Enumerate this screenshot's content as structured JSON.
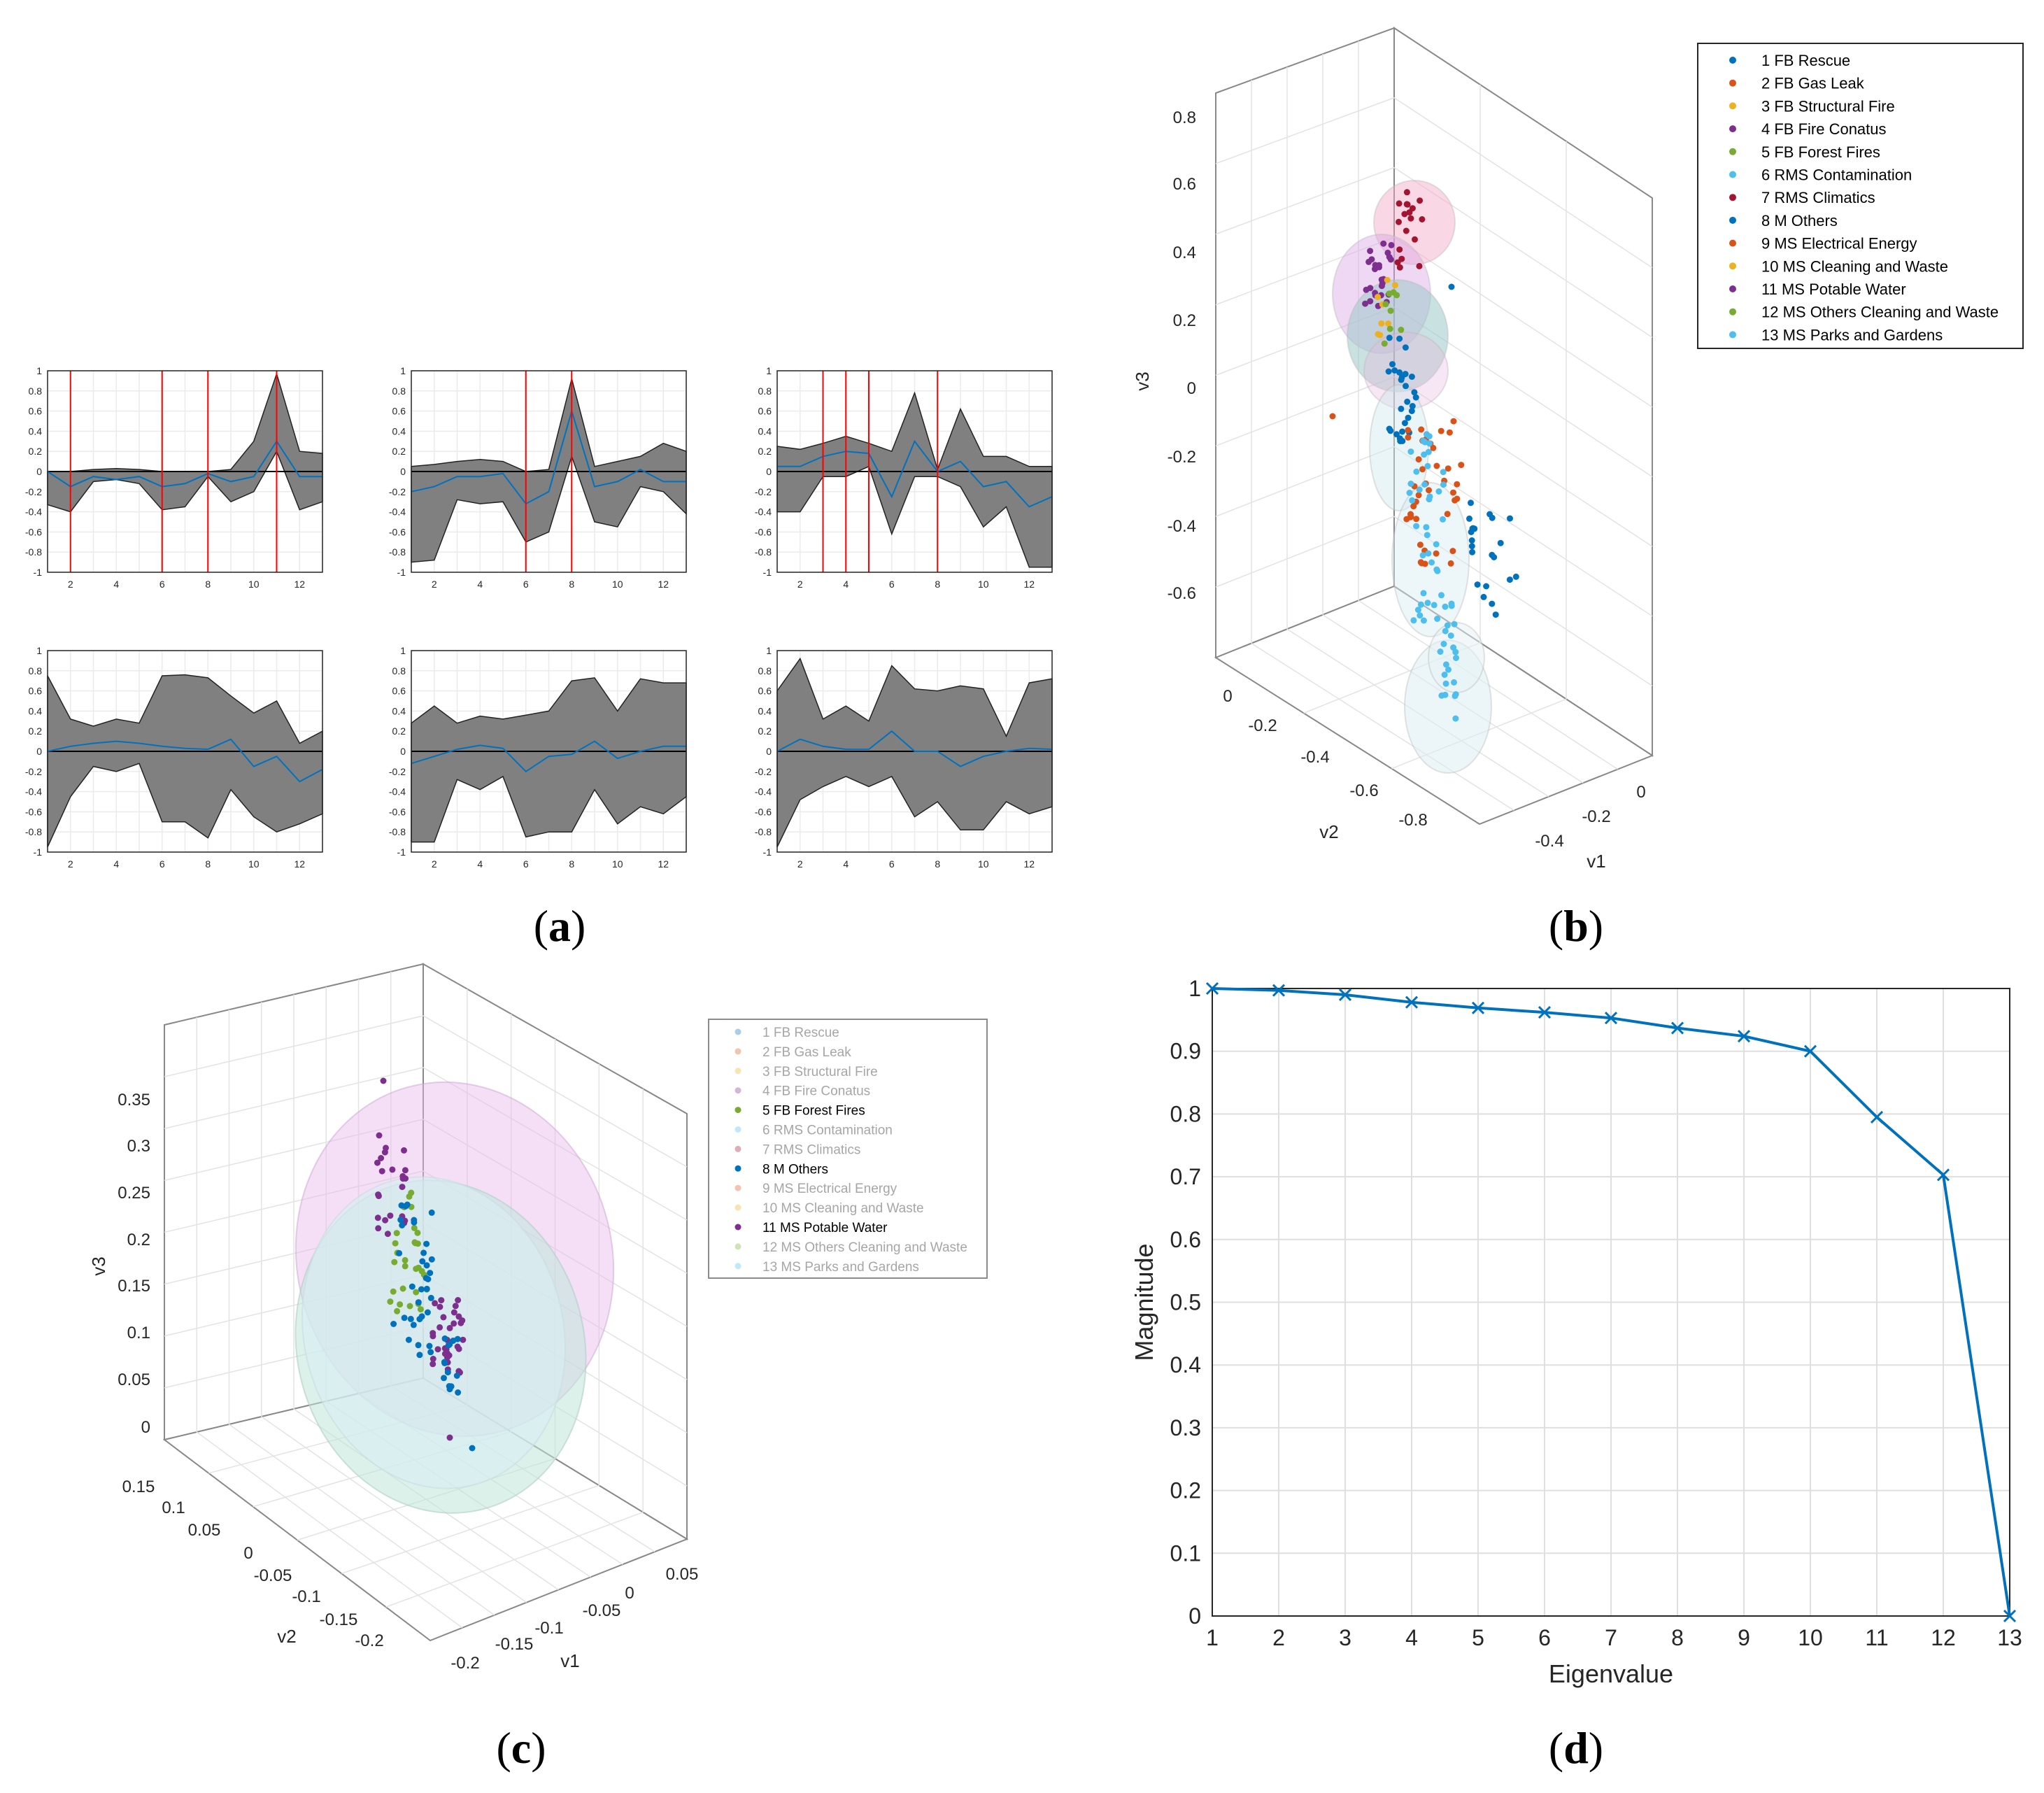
{
  "captions": {
    "a_open": "(",
    "a": "a",
    "a_close": ")",
    "b_open": "(",
    "b": "b",
    "b_close": ")",
    "c_open": "(",
    "c": "c",
    "c_close": ")",
    "d_open": "(",
    "d": "d",
    "d_close": ")"
  },
  "colors": {
    "line_blue": "#0072BD",
    "band_gray": "#808080",
    "red_marker": "#FF0000",
    "grid": "#E6E6E6"
  },
  "chart_data": [
    {
      "id": "a",
      "type": "area",
      "description_title": "",
      "xlim": [
        1,
        13
      ],
      "ylim": [
        -1,
        1
      ],
      "xticks": [
        2,
        4,
        6,
        8,
        10,
        12
      ],
      "yticks": [
        1,
        0.8,
        0.6,
        0.4,
        0.2,
        0,
        -0.2,
        -0.4,
        -0.6,
        -0.8,
        -1
      ],
      "ytick_labels": [
        "1",
        "0.8",
        "0.6",
        "0.4",
        "0.2",
        "0",
        "-0.2",
        "-0.4",
        "-0.6",
        "-0.8",
        "-1"
      ],
      "xtick_labels": [
        "2",
        "4",
        "6",
        "8",
        "10",
        "12"
      ],
      "x": [
        1,
        2,
        3,
        4,
        5,
        6,
        7,
        8,
        9,
        10,
        11,
        12,
        13
      ],
      "panels": [
        {
          "upper": [
            0,
            0,
            0.02,
            0.03,
            0.02,
            0,
            0,
            0,
            0.02,
            0.3,
            0.97,
            0.2,
            0.18
          ],
          "lower": [
            -0.33,
            -0.4,
            -0.1,
            -0.08,
            -0.12,
            -0.38,
            -0.35,
            -0.05,
            -0.3,
            -0.2,
            0.2,
            -0.38,
            -0.3
          ],
          "mean": [
            0,
            -0.15,
            -0.05,
            -0.08,
            -0.05,
            -0.15,
            -0.12,
            -0.02,
            -0.1,
            -0.05,
            0.3,
            -0.05,
            -0.05
          ],
          "red_lines": [
            2,
            6,
            8,
            11
          ]
        },
        {
          "upper": [
            0.05,
            0.07,
            0.1,
            0.12,
            0.1,
            0.0,
            0.02,
            0.92,
            0.05,
            0.1,
            0.15,
            0.28,
            0.2
          ],
          "lower": [
            -0.9,
            -0.88,
            -0.28,
            -0.32,
            -0.3,
            -0.7,
            -0.6,
            0.15,
            -0.5,
            -0.55,
            -0.15,
            -0.2,
            -0.42
          ],
          "mean": [
            -0.2,
            -0.15,
            -0.05,
            -0.05,
            -0.02,
            -0.32,
            -0.2,
            0.6,
            -0.15,
            -0.1,
            0.02,
            -0.1,
            -0.1
          ],
          "red_lines": [
            6,
            8
          ]
        },
        {
          "upper": [
            0.25,
            0.22,
            0.28,
            0.35,
            0.28,
            0.2,
            0.78,
            0.02,
            0.62,
            0.15,
            0.15,
            0.05,
            0.05
          ],
          "lower": [
            -0.4,
            -0.4,
            -0.05,
            -0.05,
            0.05,
            -0.62,
            -0.05,
            -0.05,
            -0.15,
            -0.55,
            -0.35,
            -0.95,
            -0.95
          ],
          "mean": [
            0.05,
            0.05,
            0.15,
            0.2,
            0.18,
            -0.25,
            0.3,
            0.0,
            0.1,
            -0.15,
            -0.1,
            -0.35,
            -0.25
          ],
          "red_lines": [
            3,
            4,
            5,
            8
          ]
        },
        {
          "upper": [
            0.75,
            0.32,
            0.25,
            0.32,
            0.28,
            0.75,
            0.76,
            0.73,
            0.55,
            0.38,
            0.5,
            0.08,
            0.2
          ],
          "lower": [
            -0.95,
            -0.45,
            -0.15,
            -0.2,
            -0.12,
            -0.7,
            -0.7,
            -0.86,
            -0.38,
            -0.65,
            -0.8,
            -0.72,
            -0.62
          ],
          "mean": [
            0,
            0.05,
            0.08,
            0.1,
            0.08,
            0.05,
            0.03,
            0.02,
            0.12,
            -0.15,
            -0.05,
            -0.3,
            -0.18
          ],
          "red_lines": []
        },
        {
          "upper": [
            0.28,
            0.45,
            0.28,
            0.35,
            0.32,
            0.36,
            0.4,
            0.7,
            0.73,
            0.4,
            0.72,
            0.68,
            0.68
          ],
          "lower": [
            -0.9,
            -0.9,
            -0.28,
            -0.38,
            -0.25,
            -0.85,
            -0.8,
            -0.8,
            -0.38,
            -0.72,
            -0.55,
            -0.62,
            -0.45
          ],
          "mean": [
            -0.12,
            -0.05,
            0.02,
            0.06,
            0.03,
            -0.2,
            -0.05,
            -0.03,
            0.1,
            -0.07,
            0.0,
            0.05,
            0.05
          ],
          "red_lines": []
        },
        {
          "upper": [
            0.6,
            0.92,
            0.32,
            0.45,
            0.3,
            0.85,
            0.62,
            0.6,
            0.65,
            0.62,
            0.15,
            0.68,
            0.72
          ],
          "lower": [
            -0.95,
            -0.48,
            -0.35,
            -0.25,
            -0.35,
            -0.25,
            -0.65,
            -0.5,
            -0.78,
            -0.78,
            -0.5,
            -0.62,
            -0.55
          ],
          "mean": [
            0.0,
            0.12,
            0.05,
            0.02,
            0.02,
            0.2,
            0.0,
            0.0,
            -0.15,
            -0.05,
            0.0,
            0.03,
            0.02
          ],
          "red_lines": []
        }
      ]
    },
    {
      "id": "b",
      "type": "scatter",
      "title": "",
      "zlabel": "v3",
      "xlabel": "v1",
      "ylabel": "v2",
      "z_ticks": [
        "0.8",
        "0.6",
        "0.4",
        "0.2",
        "0",
        "-0.2",
        "-0.4",
        "-0.6"
      ],
      "v2_ticks": [
        "0",
        "-0.2",
        "-0.4",
        "-0.6",
        "-0.8"
      ],
      "v1_ticks": [
        "0",
        "-0.2",
        "-0.4"
      ],
      "legend": [
        {
          "label": "1 FB Rescue",
          "color": "#0072BD"
        },
        {
          "label": "2 FB Gas Leak",
          "color": "#D95319"
        },
        {
          "label": "3 FB Structural Fire",
          "color": "#EDB120"
        },
        {
          "label": "4 FB Fire Conatus",
          "color": "#7E2F8E"
        },
        {
          "label": "5 FB Forest Fires",
          "color": "#77AC30"
        },
        {
          "label": "6 RMS Contamination",
          "color": "#4DBEEE"
        },
        {
          "label": "7 RMS Climatics",
          "color": "#A2142F"
        },
        {
          "label": "8 M Others",
          "color": "#0072BD"
        },
        {
          "label": "9 MS Electrical Energy",
          "color": "#D95319"
        },
        {
          "label": "10 MS Cleaning and Waste",
          "color": "#EDB120"
        },
        {
          "label": "11 MS Potable Water",
          "color": "#7E2F8E"
        },
        {
          "label": "12 MS Others Cleaning and Waste",
          "color": "#77AC30"
        },
        {
          "label": "13 MS Parks and Gardens",
          "color": "#4DBEEE"
        }
      ]
    },
    {
      "id": "c",
      "type": "scatter",
      "title": "",
      "zlabel": "v3",
      "xlabel": "v1",
      "ylabel": "v2",
      "z_ticks": [
        "0.35",
        "0.3",
        "0.25",
        "0.2",
        "0.15",
        "0.1",
        "0.05",
        "0"
      ],
      "v2_ticks": [
        "0.15",
        "0.1",
        "0.05",
        "0",
        "-0.05",
        "-0.1",
        "-0.15",
        "-0.2"
      ],
      "v1_ticks": [
        "0.05",
        "0",
        "-0.05",
        "-0.1",
        "-0.15",
        "-0.2"
      ],
      "legend": [
        {
          "label": "1 FB Rescue",
          "color": "#0072BD",
          "active": false
        },
        {
          "label": "2 FB Gas Leak",
          "color": "#D95319",
          "active": false
        },
        {
          "label": "3 FB Structural Fire",
          "color": "#EDB120",
          "active": false
        },
        {
          "label": "4 FB Fire Conatus",
          "color": "#7E2F8E",
          "active": false
        },
        {
          "label": "5 FB Forest Fires",
          "color": "#77AC30",
          "active": true
        },
        {
          "label": "6 RMS Contamination",
          "color": "#4DBEEE",
          "active": false
        },
        {
          "label": "7 RMS Climatics",
          "color": "#A2142F",
          "active": false
        },
        {
          "label": "8 M Others",
          "color": "#0072BD",
          "active": true
        },
        {
          "label": "9 MS Electrical Energy",
          "color": "#D95319",
          "active": false
        },
        {
          "label": "10 MS Cleaning and Waste",
          "color": "#EDB120",
          "active": false
        },
        {
          "label": "11 MS Potable Water",
          "color": "#7E2F8E",
          "active": true
        },
        {
          "label": "12 MS Others Cleaning and Waste",
          "color": "#77AC30",
          "active": false
        },
        {
          "label": "13 MS Parks and Gardens",
          "color": "#4DBEEE",
          "active": false
        }
      ]
    },
    {
      "id": "d",
      "type": "line",
      "title": "",
      "xlabel": "Eigenvalue",
      "ylabel": "Magnitude",
      "x": [
        1,
        2,
        3,
        4,
        5,
        6,
        7,
        8,
        9,
        10,
        11,
        12,
        13
      ],
      "values": [
        1.0,
        0.997,
        0.99,
        0.978,
        0.969,
        0.962,
        0.953,
        0.937,
        0.924,
        0.9,
        0.795,
        0.703,
        0.0
      ],
      "xlim": [
        1,
        13
      ],
      "ylim": [
        0,
        1
      ],
      "xtick_labels": [
        "1",
        "2",
        "3",
        "4",
        "5",
        "6",
        "7",
        "8",
        "9",
        "10",
        "11",
        "12",
        "13"
      ],
      "ytick_labels": [
        "0",
        "0.1",
        "0.2",
        "0.3",
        "0.4",
        "0.5",
        "0.6",
        "0.7",
        "0.8",
        "0.9",
        "1"
      ],
      "grid": true,
      "marker": "x",
      "color": "#0072BD"
    }
  ]
}
